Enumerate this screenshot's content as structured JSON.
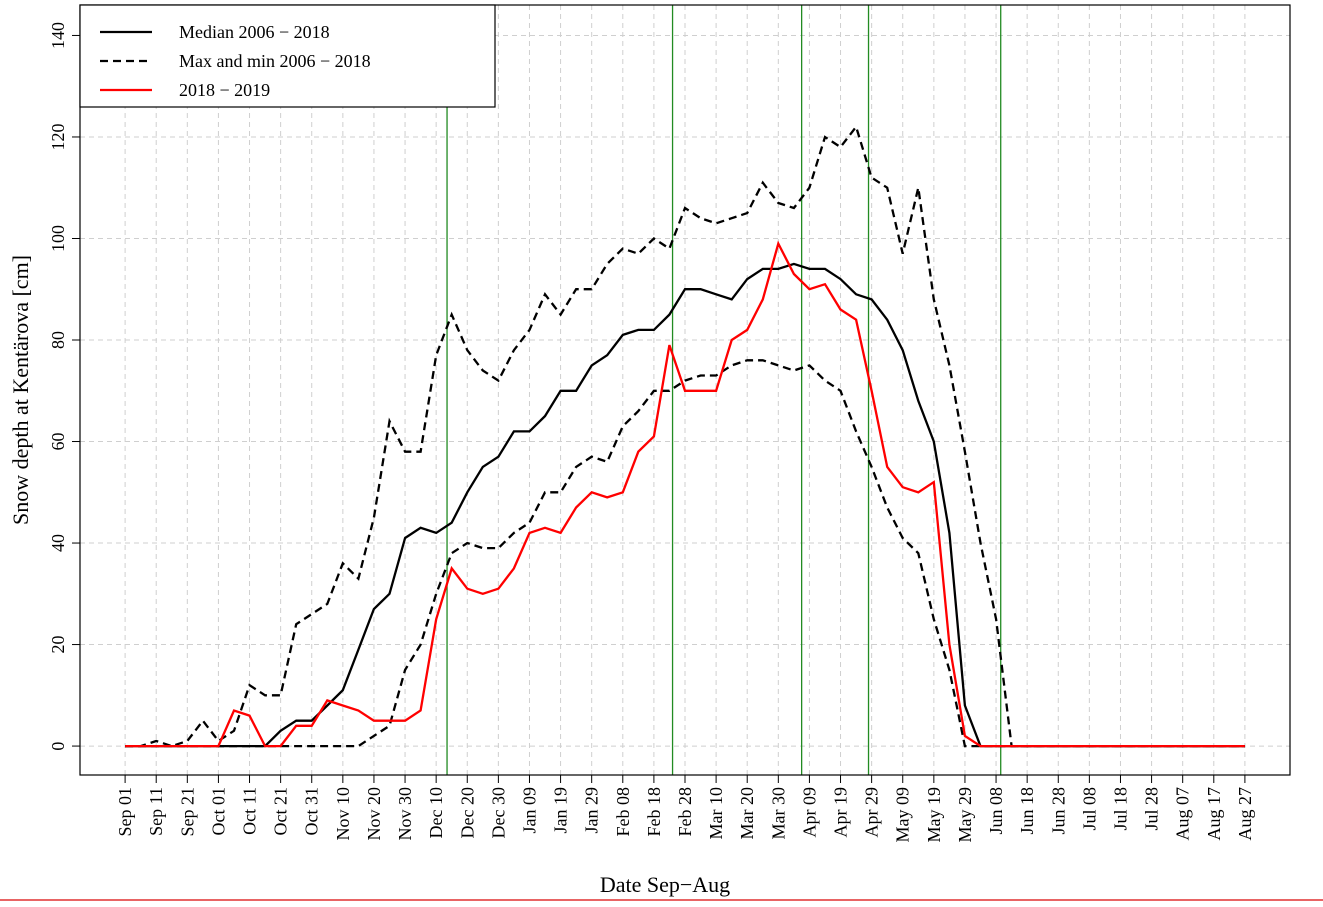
{
  "chart_data": {
    "type": "line",
    "xlabel": "Date Sep−Aug",
    "ylabel": "Snow depth at Kentärova [cm]",
    "x": [
      0,
      5,
      10,
      15,
      20,
      25,
      30,
      35,
      40,
      45,
      50,
      55,
      60,
      65,
      70,
      75,
      80,
      85,
      90,
      95,
      100,
      105,
      110,
      115,
      120,
      125,
      130,
      135,
      140,
      145,
      150,
      155,
      160,
      165,
      170,
      175,
      180,
      185,
      190,
      195,
      200,
      205,
      210,
      215,
      220,
      225,
      230,
      235,
      240,
      245,
      250,
      255,
      260,
      265,
      270,
      275,
      280,
      285,
      290,
      295,
      300,
      305,
      310,
      315,
      320,
      325,
      330,
      335,
      340,
      345,
      350,
      355,
      360
    ],
    "series": [
      {
        "name": "Median 2006 − 2018",
        "color": "#000000",
        "dash": false,
        "values": [
          0,
          0,
          0,
          0,
          0,
          0,
          0,
          0,
          0,
          0,
          3,
          5,
          5,
          8,
          11,
          19,
          27,
          30,
          41,
          43,
          42,
          44,
          50,
          55,
          57,
          62,
          62,
          65,
          70,
          70,
          75,
          77,
          81,
          82,
          82,
          85,
          90,
          90,
          89,
          88,
          92,
          94,
          94,
          95,
          94,
          94,
          92,
          89,
          88,
          84,
          78,
          68,
          60,
          42,
          8,
          0,
          0,
          0,
          0,
          0,
          0,
          0,
          0,
          0,
          0,
          0,
          0,
          0,
          0,
          0,
          0,
          0,
          0
        ]
      },
      {
        "name": "Max and min 2006 − 2018",
        "color": "#000000",
        "dash": true,
        "values": [
          0,
          0,
          1,
          0,
          1,
          5,
          1,
          3,
          12,
          10,
          10,
          24,
          26,
          28,
          36,
          33,
          45,
          64,
          58,
          58,
          77,
          85,
          78,
          74,
          72,
          78,
          82,
          89,
          85,
          90,
          90,
          95,
          98,
          97,
          100,
          98,
          106,
          104,
          103,
          104,
          105,
          111,
          107,
          106,
          110,
          120,
          118,
          122,
          112,
          110,
          97,
          110,
          88,
          75,
          58,
          40,
          25,
          0,
          0,
          0,
          0,
          0,
          0,
          0,
          0,
          0,
          0,
          0,
          0,
          0,
          0,
          0,
          0
        ],
        "values_low": [
          0,
          0,
          0,
          0,
          0,
          0,
          0,
          0,
          0,
          0,
          0,
          0,
          0,
          0,
          0,
          0,
          2,
          4,
          15,
          20,
          30,
          38,
          40,
          39,
          39,
          42,
          44,
          50,
          50,
          55,
          57,
          56,
          63,
          66,
          70,
          70,
          72,
          73,
          73,
          75,
          76,
          76,
          75,
          74,
          75,
          72,
          70,
          62,
          55,
          47,
          41,
          38,
          25,
          15,
          0,
          0,
          0,
          0,
          0,
          0,
          0,
          0,
          0,
          0,
          0,
          0,
          0,
          0,
          0,
          0,
          0,
          0,
          0
        ]
      },
      {
        "name": "2018 − 2019",
        "color": "#ff0000",
        "dash": false,
        "values": [
          0,
          0,
          0,
          0,
          0,
          0,
          0,
          7,
          6,
          0,
          0,
          4,
          4,
          9,
          8,
          7,
          5,
          5,
          5,
          7,
          25,
          35,
          31,
          30,
          31,
          35,
          42,
          43,
          42,
          47,
          50,
          49,
          50,
          58,
          61,
          79,
          70,
          70,
          70,
          80,
          82,
          88,
          99,
          93,
          90,
          91,
          86,
          84,
          70,
          55,
          51,
          50,
          52,
          20,
          2,
          0,
          0,
          0,
          0,
          0,
          0,
          0,
          0,
          0,
          0,
          0,
          0,
          0,
          0,
          0,
          0,
          0,
          0
        ]
      }
    ],
    "vlines": [
      103.5,
      176,
      217.5,
      239,
      281.5
    ],
    "vline_color": "#228b22",
    "xlim": [
      -14.5,
      374.5
    ],
    "ylim": [
      -5.7,
      146
    ],
    "xticks": [
      {
        "value": 0,
        "label": "Sep 01"
      },
      {
        "value": 10,
        "label": "Sep 11"
      },
      {
        "value": 20,
        "label": "Sep 21"
      },
      {
        "value": 30,
        "label": "Oct 01"
      },
      {
        "value": 40,
        "label": "Oct 11"
      },
      {
        "value": 50,
        "label": "Oct 21"
      },
      {
        "value": 60,
        "label": "Oct 31"
      },
      {
        "value": 70,
        "label": "Nov 10"
      },
      {
        "value": 80,
        "label": "Nov 20"
      },
      {
        "value": 90,
        "label": "Nov 30"
      },
      {
        "value": 100,
        "label": "Dec 10"
      },
      {
        "value": 110,
        "label": "Dec 20"
      },
      {
        "value": 120,
        "label": "Dec 30"
      },
      {
        "value": 130,
        "label": "Jan 09"
      },
      {
        "value": 140,
        "label": "Jan 19"
      },
      {
        "value": 150,
        "label": "Jan 29"
      },
      {
        "value": 160,
        "label": "Feb 08"
      },
      {
        "value": 170,
        "label": "Feb 18"
      },
      {
        "value": 180,
        "label": "Feb 28"
      },
      {
        "value": 190,
        "label": "Mar 10"
      },
      {
        "value": 200,
        "label": "Mar 20"
      },
      {
        "value": 210,
        "label": "Mar 30"
      },
      {
        "value": 220,
        "label": "Apr 09"
      },
      {
        "value": 230,
        "label": "Apr 19"
      },
      {
        "value": 240,
        "label": "Apr 29"
      },
      {
        "value": 250,
        "label": "May 09"
      },
      {
        "value": 260,
        "label": "May 19"
      },
      {
        "value": 270,
        "label": "May 29"
      },
      {
        "value": 280,
        "label": "Jun 08"
      },
      {
        "value": 290,
        "label": "Jun 18"
      },
      {
        "value": 300,
        "label": "Jun 28"
      },
      {
        "value": 310,
        "label": "Jul 08"
      },
      {
        "value": 320,
        "label": "Jul 18"
      },
      {
        "value": 330,
        "label": "Jul 28"
      },
      {
        "value": 340,
        "label": "Aug 07"
      },
      {
        "value": 350,
        "label": "Aug 17"
      },
      {
        "value": 360,
        "label": "Aug 27"
      }
    ],
    "yticks": [
      0,
      20,
      40,
      60,
      80,
      100,
      120,
      140
    ],
    "grid": true,
    "legend": "upper left"
  }
}
